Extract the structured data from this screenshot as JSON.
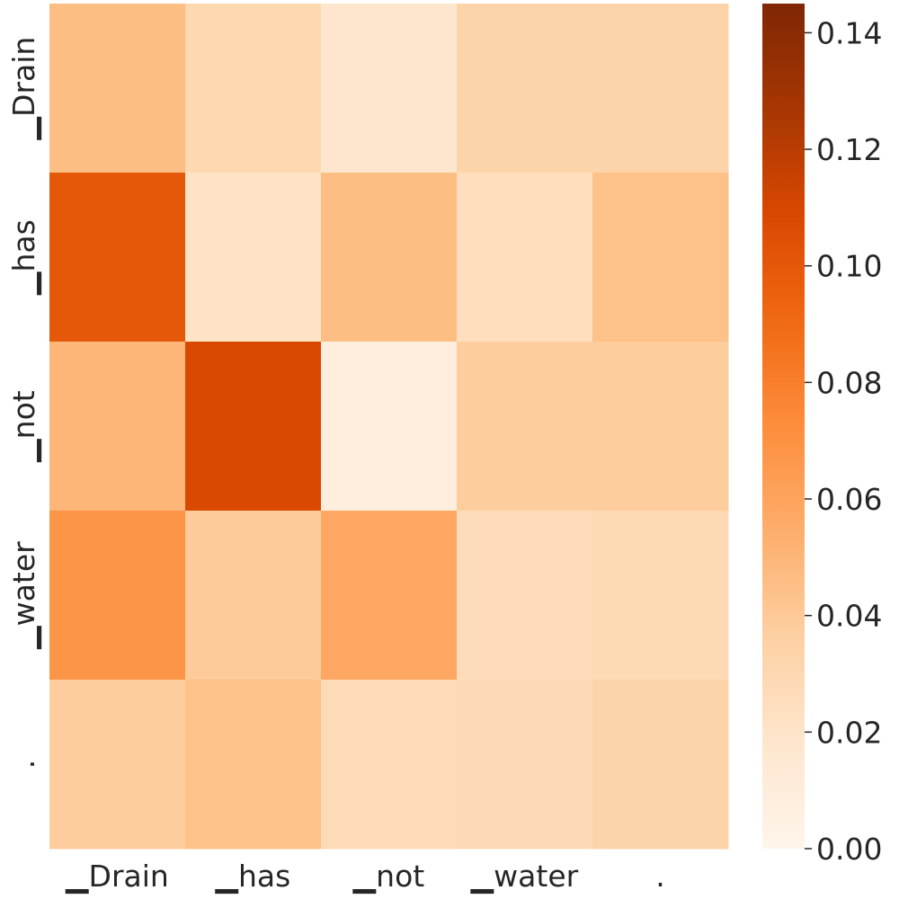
{
  "chart_data": {
    "type": "heatmap",
    "title": "",
    "xlabel": "",
    "ylabel": "",
    "x_labels": [
      "▁Drain",
      "▁has",
      "▁not",
      "▁water",
      "."
    ],
    "y_labels": [
      "▁Drain",
      "▁has",
      "▁not",
      "▁water",
      "."
    ],
    "values": [
      [
        0.046,
        0.03,
        0.018,
        0.033,
        0.033
      ],
      [
        0.1,
        0.021,
        0.046,
        0.025,
        0.044
      ],
      [
        0.05,
        0.108,
        0.009,
        0.038,
        0.038
      ],
      [
        0.068,
        0.039,
        0.058,
        0.026,
        0.029
      ],
      [
        0.038,
        0.044,
        0.027,
        0.028,
        0.033
      ]
    ],
    "colormap": "Oranges",
    "colors": {
      "scale_low": "#fff5eb",
      "scale_high": "#7f2704"
    },
    "colorbar": {
      "range": [
        0,
        0.145
      ],
      "ticks": [
        0.0,
        0.02,
        0.04,
        0.06,
        0.08,
        0.1,
        0.12,
        0.14
      ],
      "tick_labels": [
        "0.00",
        "0.02",
        "0.04",
        "0.06",
        "0.08",
        "0.10",
        "0.12",
        "0.14"
      ]
    },
    "grid": false,
    "legend": "colorbar-right"
  }
}
